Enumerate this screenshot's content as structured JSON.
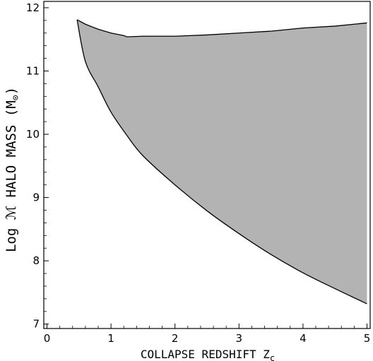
{
  "chart_data": {
    "type": "area",
    "title": "",
    "xlabel": "COLLAPSE REDSHIFT Z",
    "xlabel_subscript": "c",
    "ylabel": "Log ℳ HALO MASS  (M",
    "ylabel_symbol": "⊙",
    "ylabel_close": ")",
    "xlim": [
      -0.05,
      5.05
    ],
    "ylim": [
      6.93,
      12.1
    ],
    "xticks": [
      0,
      1,
      2,
      3,
      4,
      5
    ],
    "xtick_labels": [
      "0",
      "1",
      "2",
      "3",
      "4",
      "5"
    ],
    "yticks": [
      7,
      8,
      9,
      10,
      11,
      12
    ],
    "ytick_labels": [
      "7",
      "8",
      "9",
      "10",
      "11",
      "12"
    ],
    "grid": false,
    "fill_color": "#b3b3b3",
    "line_color": "#000000",
    "series": [
      {
        "role": "upper_boundary",
        "x": [
          0.47,
          0.6,
          0.8,
          1.0,
          1.2,
          1.25,
          1.5,
          2.0,
          2.5,
          3.0,
          3.5,
          4.0,
          4.5,
          5.0
        ],
        "y": [
          11.81,
          11.74,
          11.66,
          11.6,
          11.56,
          11.54,
          11.55,
          11.55,
          11.57,
          11.6,
          11.63,
          11.68,
          11.71,
          11.76
        ]
      },
      {
        "role": "lower_boundary",
        "x": [
          0.47,
          0.6,
          0.8,
          1.0,
          1.25,
          1.5,
          2.0,
          2.5,
          3.0,
          3.5,
          4.0,
          4.5,
          5.0
        ],
        "y": [
          11.81,
          11.15,
          10.75,
          10.35,
          9.98,
          9.66,
          9.2,
          8.79,
          8.43,
          8.1,
          7.81,
          7.56,
          7.32
        ]
      }
    ]
  }
}
